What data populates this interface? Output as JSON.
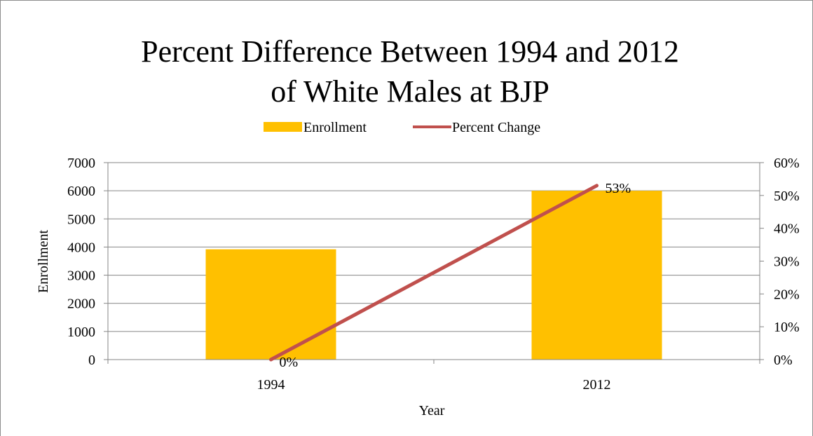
{
  "chart_data": {
    "type": "bar",
    "title_lines": [
      "Percent Difference Between 1994 and 2012",
      "of White Males at BJP"
    ],
    "xlabel": "Year",
    "ylabel": "Enrollment",
    "categories": [
      "1994",
      "2012"
    ],
    "series": [
      {
        "name": "Enrollment",
        "type": "bar",
        "axis": "left",
        "values": [
          3920,
          6000
        ]
      },
      {
        "name": "Percent Change",
        "type": "line",
        "axis": "right",
        "values": [
          0,
          53
        ]
      }
    ],
    "data_labels": [
      "0%",
      "53%"
    ],
    "left_axis": {
      "ylim": [
        0,
        7000
      ],
      "ticks": [
        "0",
        "1000",
        "2000",
        "3000",
        "4000",
        "5000",
        "6000",
        "7000"
      ]
    },
    "right_axis": {
      "ylim": [
        0,
        60
      ],
      "ticks": [
        "0%",
        "10%",
        "20%",
        "30%",
        "40%",
        "50%",
        "60%"
      ]
    },
    "legend_position": "top",
    "grid": true,
    "colors": {
      "bar": "#FFC000",
      "line": "#C0504D",
      "grid": "#868686"
    }
  }
}
